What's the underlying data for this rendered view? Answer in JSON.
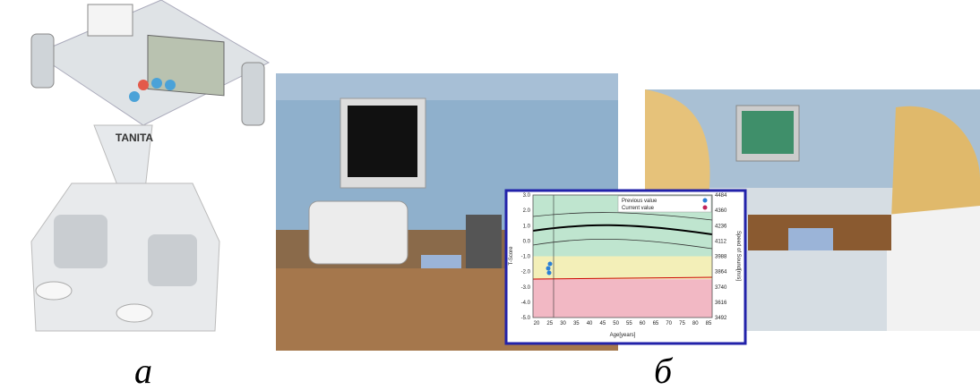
{
  "captions": [
    "а",
    "б"
  ],
  "inset": {
    "legend": [
      "Previous value",
      "Current value"
    ],
    "y_label": "T-Score",
    "x_label": "Age[years]",
    "y2_label": "Speed of Sound[m/s]",
    "y_ticks": [
      "3.0",
      "2.0",
      "1.0",
      "0.0",
      "-1.0",
      "-2.0",
      "-3.0",
      "-4.0",
      "-5.0"
    ],
    "y2_ticks": [
      "4484",
      "4360",
      "4236",
      "4112",
      "3988",
      "3864",
      "3740",
      "3616",
      "3492"
    ],
    "x_ticks": [
      "20",
      "25",
      "30",
      "35",
      "40",
      "45",
      "50",
      "55",
      "60",
      "65",
      "70",
      "75",
      "80",
      "85"
    ]
  },
  "device_brand": "TANITA"
}
